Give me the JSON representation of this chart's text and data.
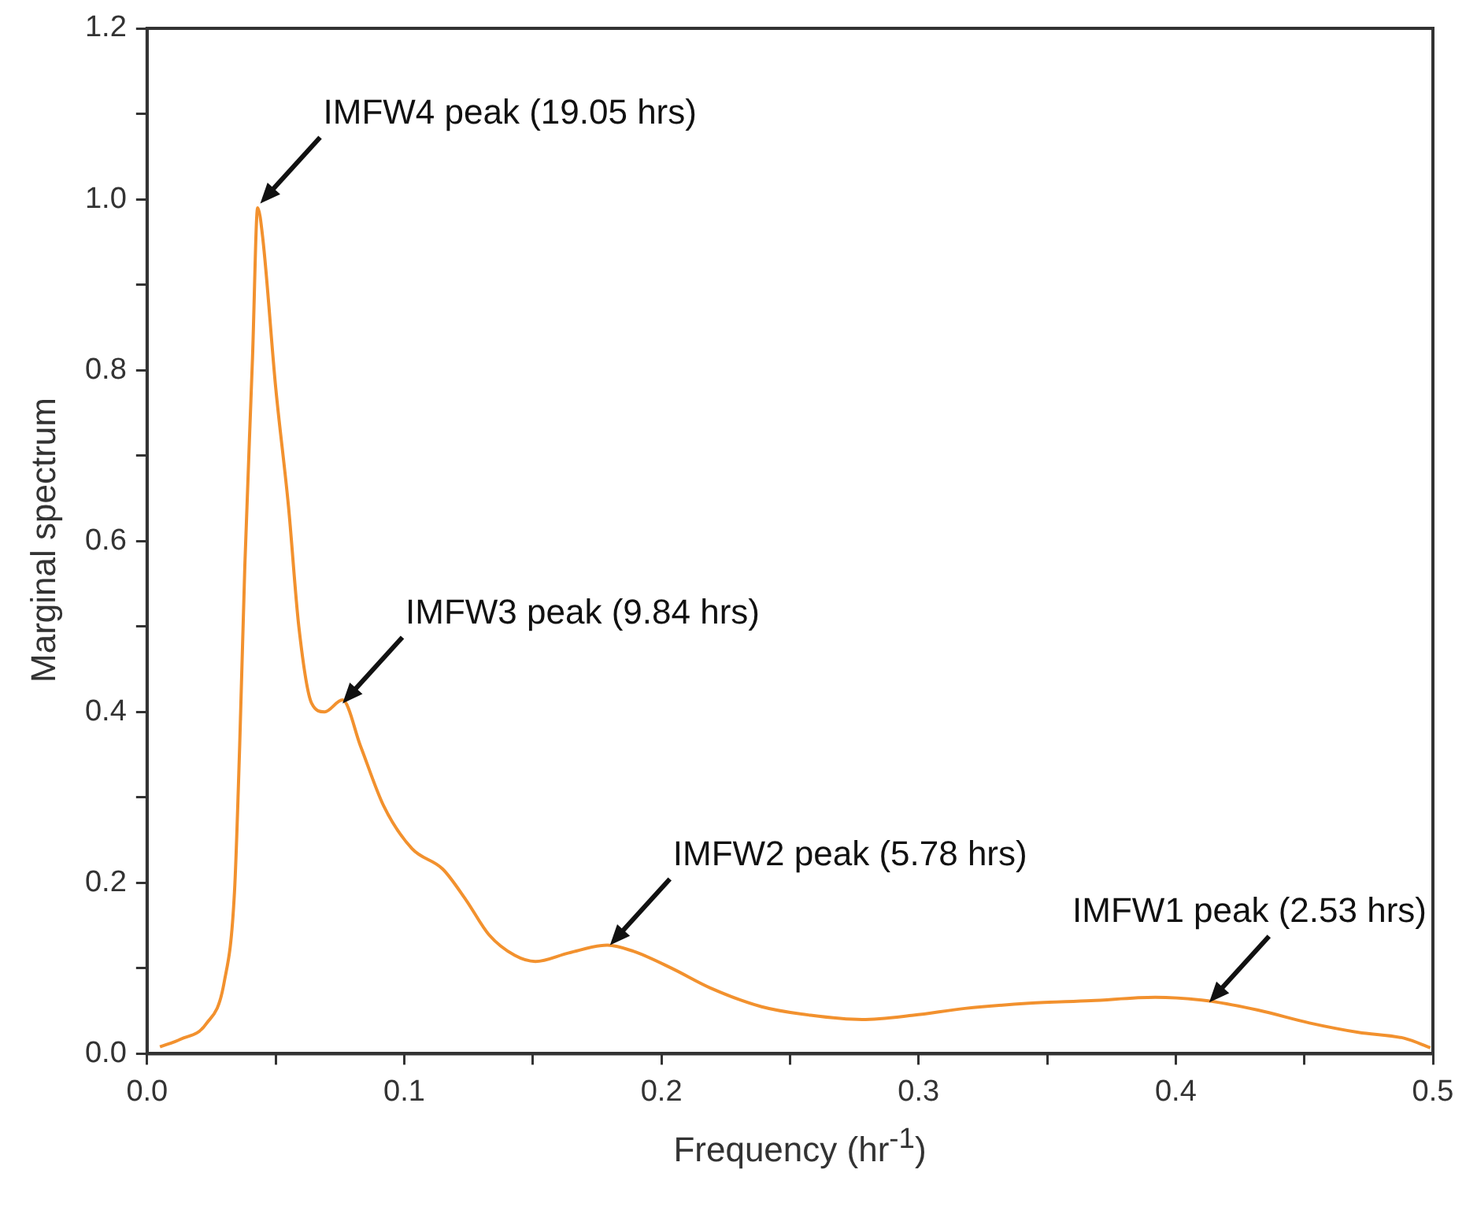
{
  "chart_data": {
    "type": "line",
    "xlabel": "Frequency (hr$^{-1}$)",
    "ylabel": "Marginal spectrum",
    "series": [
      {
        "color": "#f2912e",
        "x": [
          0.005,
          0.013,
          0.023,
          0.03,
          0.034,
          0.036,
          0.038,
          0.041,
          0.043,
          0.045,
          0.05,
          0.055,
          0.059,
          0.064,
          0.069,
          0.076,
          0.083,
          0.092,
          0.103,
          0.115,
          0.124,
          0.133,
          0.143,
          0.151,
          0.164,
          0.179,
          0.189,
          0.204,
          0.219,
          0.239,
          0.258,
          0.278,
          0.298,
          0.318,
          0.343,
          0.367,
          0.392,
          0.412,
          0.432,
          0.452,
          0.471,
          0.489,
          0.499
        ],
        "values": [
          0.008,
          0.017,
          0.035,
          0.084,
          0.19,
          0.36,
          0.57,
          0.815,
          0.99,
          0.954,
          0.78,
          0.64,
          0.5,
          0.41,
          0.4,
          0.414,
          0.36,
          0.29,
          0.24,
          0.216,
          0.18,
          0.139,
          0.115,
          0.108,
          0.118,
          0.127,
          0.12,
          0.1,
          0.077,
          0.055,
          0.045,
          0.04,
          0.045,
          0.053,
          0.059,
          0.062,
          0.066,
          0.062,
          0.051,
          0.036,
          0.025,
          0.018,
          0.007
        ]
      }
    ],
    "xlim": [
      0,
      0.5
    ],
    "ylim": [
      0,
      1.2
    ],
    "xticks": [
      {
        "value": 0,
        "label": "0.0"
      },
      {
        "value": 0.05,
        "label": null
      },
      0.1,
      {
        "value": 0.15,
        "label": null
      },
      0.2,
      {
        "value": 0.25,
        "label": null
      },
      0.3,
      {
        "value": 0.35,
        "label": null
      },
      0.4,
      {
        "value": 0.45,
        "label": null
      },
      0.5
    ],
    "yticks": [
      {
        "value": 0,
        "label": "0.0"
      },
      {
        "value": 0.1,
        "label": null
      },
      0.2,
      {
        "value": 0.3,
        "label": null
      },
      0.4,
      {
        "value": 0.5,
        "label": null
      },
      0.6,
      {
        "value": 0.7,
        "label": null
      },
      0.8,
      {
        "value": 0.9,
        "label": null
      },
      {
        "value": 1,
        "label": "1.0"
      },
      {
        "value": 1.1,
        "label": null
      },
      1.2
    ],
    "annotations": [
      {
        "text": "IMFW4 peak (19.05 hrs)",
        "x": 0.044,
        "y": 0.995
      },
      {
        "text": "IMFW3 peak (9.84 hrs)",
        "x": 0.076,
        "y": 0.41
      },
      {
        "text": "IMFW2 peak (5.78 hrs)",
        "x": 0.18,
        "y": 0.127
      },
      {
        "text": "IMFW1 peak (2.53 hrs)",
        "x": 0.413,
        "y": 0.06
      }
    ],
    "grid": false,
    "legend": false,
    "marker": "none",
    "line_style": "solid"
  }
}
